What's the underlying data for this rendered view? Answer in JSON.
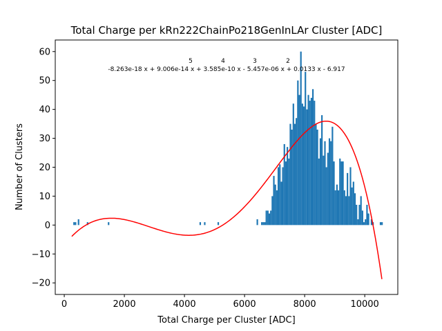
{
  "chart_data": {
    "type": "bar",
    "title": "Total Charge per kRn222ChainPo218GenInLAr Cluster [ADC]",
    "xlabel": "Total Charge per Cluster [ADC]",
    "ylabel": "Number of Clusters",
    "xlim": [
      -300,
      11100
    ],
    "ylim": [
      -24,
      64
    ],
    "xticks": [
      0,
      2000,
      4000,
      6000,
      8000,
      10000
    ],
    "yticks": [
      -20,
      -10,
      0,
      10,
      20,
      30,
      40,
      50,
      60
    ],
    "grid": false,
    "bar_color": "#1f77b4",
    "bin_width": 50,
    "bars": [
      {
        "x": 300,
        "y": 1
      },
      {
        "x": 350,
        "y": 1
      },
      {
        "x": 450,
        "y": 2
      },
      {
        "x": 750,
        "y": 1
      },
      {
        "x": 1450,
        "y": 1
      },
      {
        "x": 4500,
        "y": 1
      },
      {
        "x": 4650,
        "y": 1
      },
      {
        "x": 5100,
        "y": 1
      },
      {
        "x": 6400,
        "y": 2
      },
      {
        "x": 6550,
        "y": 1
      },
      {
        "x": 6600,
        "y": 1
      },
      {
        "x": 6650,
        "y": 1
      },
      {
        "x": 6700,
        "y": 5
      },
      {
        "x": 6750,
        "y": 5
      },
      {
        "x": 6800,
        "y": 4
      },
      {
        "x": 6850,
        "y": 5
      },
      {
        "x": 6900,
        "y": 10
      },
      {
        "x": 6950,
        "y": 17
      },
      {
        "x": 7000,
        "y": 14
      },
      {
        "x": 7050,
        "y": 12
      },
      {
        "x": 7100,
        "y": 20
      },
      {
        "x": 7150,
        "y": 21
      },
      {
        "x": 7200,
        "y": 15
      },
      {
        "x": 7250,
        "y": 20
      },
      {
        "x": 7300,
        "y": 28
      },
      {
        "x": 7350,
        "y": 22
      },
      {
        "x": 7400,
        "y": 27
      },
      {
        "x": 7450,
        "y": 23
      },
      {
        "x": 7500,
        "y": 35
      },
      {
        "x": 7550,
        "y": 33
      },
      {
        "x": 7600,
        "y": 42
      },
      {
        "x": 7650,
        "y": 35
      },
      {
        "x": 7700,
        "y": 37
      },
      {
        "x": 7750,
        "y": 50
      },
      {
        "x": 7800,
        "y": 45
      },
      {
        "x": 7850,
        "y": 60
      },
      {
        "x": 7900,
        "y": 42
      },
      {
        "x": 7950,
        "y": 41
      },
      {
        "x": 8000,
        "y": 53
      },
      {
        "x": 8050,
        "y": 40
      },
      {
        "x": 8100,
        "y": 45
      },
      {
        "x": 8150,
        "y": 43
      },
      {
        "x": 8200,
        "y": 44
      },
      {
        "x": 8250,
        "y": 47
      },
      {
        "x": 8300,
        "y": 43
      },
      {
        "x": 8350,
        "y": 35
      },
      {
        "x": 8400,
        "y": 33
      },
      {
        "x": 8450,
        "y": 23
      },
      {
        "x": 8500,
        "y": 30
      },
      {
        "x": 8550,
        "y": 38
      },
      {
        "x": 8600,
        "y": 24
      },
      {
        "x": 8650,
        "y": 29
      },
      {
        "x": 8700,
        "y": 20
      },
      {
        "x": 8750,
        "y": 25
      },
      {
        "x": 8800,
        "y": 30
      },
      {
        "x": 8850,
        "y": 29
      },
      {
        "x": 8900,
        "y": 34
      },
      {
        "x": 8950,
        "y": 22
      },
      {
        "x": 9000,
        "y": 12
      },
      {
        "x": 9050,
        "y": 14
      },
      {
        "x": 9100,
        "y": 12
      },
      {
        "x": 9150,
        "y": 23
      },
      {
        "x": 9200,
        "y": 22
      },
      {
        "x": 9250,
        "y": 22
      },
      {
        "x": 9300,
        "y": 12
      },
      {
        "x": 9350,
        "y": 10
      },
      {
        "x": 9400,
        "y": 18
      },
      {
        "x": 9450,
        "y": 10
      },
      {
        "x": 9500,
        "y": 20
      },
      {
        "x": 9550,
        "y": 13
      },
      {
        "x": 9600,
        "y": 15
      },
      {
        "x": 9650,
        "y": 11
      },
      {
        "x": 9700,
        "y": 7
      },
      {
        "x": 9750,
        "y": 2
      },
      {
        "x": 9800,
        "y": 7
      },
      {
        "x": 9850,
        "y": 10
      },
      {
        "x": 9900,
        "y": 5
      },
      {
        "x": 9950,
        "y": 1
      },
      {
        "x": 10000,
        "y": 2
      },
      {
        "x": 10050,
        "y": 7
      },
      {
        "x": 10100,
        "y": 4
      },
      {
        "x": 10200,
        "y": 2
      },
      {
        "x": 10250,
        "y": 1
      },
      {
        "x": 10500,
        "y": 1
      },
      {
        "x": 10550,
        "y": 1
      }
    ],
    "fit": {
      "color": "#ff0000",
      "x_range": [
        250,
        10570
      ],
      "coefficients": [
        -8.263e-18,
        9.006e-14,
        3.585e-10,
        -5.457e-06,
        0.0133,
        -6.917
      ],
      "equation_text": "-8.263e-18 x + 9.006e-14 x + 3.585e-10 x - 5.457e-06 x + 0.0133 x - 6.917",
      "exponents": [
        "5",
        "4",
        "3",
        "2"
      ]
    }
  }
}
